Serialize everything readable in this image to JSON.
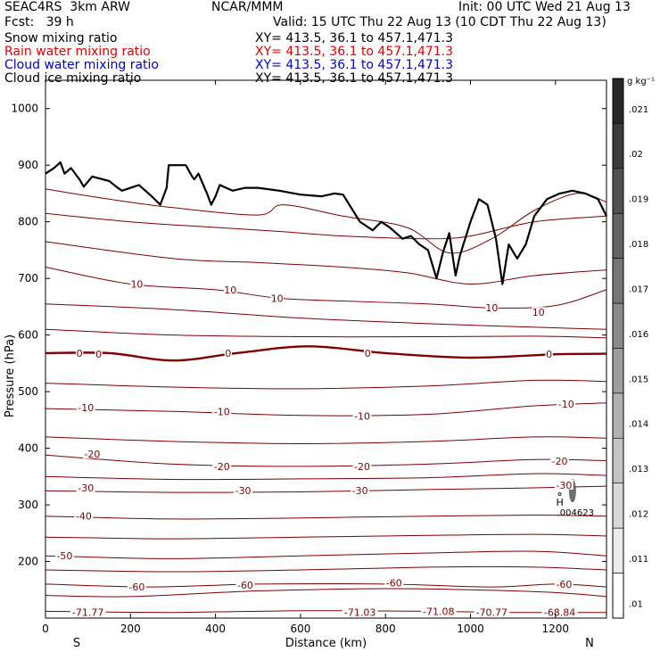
{
  "header": {
    "model": "SEAC4RS  3km ARW",
    "org": "NCAR/MMM",
    "init": "Init: 00 UTC Wed 21 Aug 13",
    "fcst": "Fcst:   39 h",
    "valid": "Valid: 15 UTC Thu 22 Aug 13 (10 CDT Thu 22 Aug 13)",
    "fields": [
      {
        "name": "Snow mixing ratio",
        "xy": "XY= 413.5, 36.1 to 457.1,471.3",
        "color": "#000000"
      },
      {
        "name": "Rain water mixing ratio",
        "xy": "XY= 413.5, 36.1 to 457.1,471.3",
        "color": "#e00000"
      },
      {
        "name": "Cloud water mixing ratio",
        "xy": "XY= 413.5, 36.1 to 457.1,471.3",
        "color": "#0000d0"
      },
      {
        "name": "Cloud ice mixing ratio",
        "xy": "XY= 413.5, 36.1 to 457.1,471.3",
        "color": "#000000"
      }
    ]
  },
  "colors": {
    "isotherm": "#800000",
    "terrain": "#000000",
    "grid_box": "#000000"
  },
  "chart_data": {
    "type": "contour_cross_section",
    "xlabel": "Distance (km)",
    "ylabel": "Pressure (hPa)",
    "xlim": [
      0,
      1320
    ],
    "ylim": [
      1050,
      100
    ],
    "x_ticks": [
      "0",
      "200",
      "400",
      "600",
      "800",
      "1000",
      "1200"
    ],
    "y_ticks": [
      "200",
      "300",
      "400",
      "500",
      "600",
      "700",
      "800",
      "900",
      "1000"
    ],
    "x_ends": {
      "left": "S",
      "right": "N"
    },
    "colorbar": {
      "unit": "g kg⁻¹",
      "labels": [
        ".021",
        ".02",
        ".019",
        ".018",
        ".017",
        ".016",
        ".015",
        ".014",
        ".013",
        ".012",
        ".011",
        ".01"
      ]
    },
    "max_label": {
      "symbol": "H",
      "value": ".004623"
    },
    "isotherm_labels": [
      {
        "text": "-71.77",
        "x": 100,
        "p": 110
      },
      {
        "text": "-71.03",
        "x": 740,
        "p": 110
      },
      {
        "text": "-71.08",
        "x": 925,
        "p": 112
      },
      {
        "text": "-70.77",
        "x": 1050,
        "p": 110
      },
      {
        "text": "-68.84",
        "x": 1210,
        "p": 110
      },
      {
        "text": "-60",
        "x": 215,
        "p": 155
      },
      {
        "text": "-60",
        "x": 470,
        "p": 158
      },
      {
        "text": "-60",
        "x": 820,
        "p": 162
      },
      {
        "text": "-60",
        "x": 1220,
        "p": 160
      },
      {
        "text": "-50",
        "x": 45,
        "p": 210
      },
      {
        "text": "-40",
        "x": 90,
        "p": 280
      },
      {
        "text": "-30",
        "x": 95,
        "p": 330
      },
      {
        "text": "-30",
        "x": 465,
        "p": 325
      },
      {
        "text": "-30",
        "x": 740,
        "p": 325
      },
      {
        "text": "-30",
        "x": 1220,
        "p": 335
      },
      {
        "text": "-20",
        "x": 110,
        "p": 390
      },
      {
        "text": "-20",
        "x": 415,
        "p": 368
      },
      {
        "text": "-20",
        "x": 745,
        "p": 368
      },
      {
        "text": "-20",
        "x": 1210,
        "p": 377
      },
      {
        "text": "-10",
        "x": 95,
        "p": 472
      },
      {
        "text": "-10",
        "x": 415,
        "p": 465
      },
      {
        "text": "-10",
        "x": 745,
        "p": 457
      },
      {
        "text": "-10",
        "x": 1225,
        "p": 478
      },
      {
        "text": "0",
        "x": 80,
        "p": 568
      },
      {
        "text": "0",
        "x": 125,
        "p": 566
      },
      {
        "text": "0",
        "x": 430,
        "p": 568
      },
      {
        "text": "0",
        "x": 758,
        "p": 568
      },
      {
        "text": "0",
        "x": 1185,
        "p": 566
      },
      {
        "text": "10",
        "x": 215,
        "p": 690
      },
      {
        "text": "10",
        "x": 435,
        "p": 680
      },
      {
        "text": "10",
        "x": 545,
        "p": 665
      },
      {
        "text": "10",
        "x": 1050,
        "p": 648
      },
      {
        "text": "10",
        "x": 1160,
        "p": 640
      }
    ],
    "isotherms": [
      {
        "t": -70,
        "thick": false,
        "pts": [
          [
            0,
            112
          ],
          [
            300,
            110
          ],
          [
            600,
            113
          ],
          [
            900,
            112
          ],
          [
            1100,
            110
          ],
          [
            1320,
            110
          ]
        ]
      },
      {
        "t": -60,
        "thick": false,
        "pts": [
          [
            0,
            140
          ],
          [
            200,
            138
          ],
          [
            500,
            148
          ],
          [
            800,
            152
          ],
          [
            1000,
            150
          ],
          [
            1200,
            145
          ],
          [
            1320,
            138
          ]
        ]
      },
      {
        "t": -60,
        "thick": false,
        "pts": [
          [
            0,
            160
          ],
          [
            250,
            155
          ],
          [
            500,
            160
          ],
          [
            800,
            160
          ],
          [
            1050,
            155
          ],
          [
            1200,
            160
          ],
          [
            1320,
            155
          ]
        ]
      },
      {
        "t": -55,
        "thick": false,
        "pts": [
          [
            0,
            185
          ],
          [
            300,
            182
          ],
          [
            600,
            185
          ],
          [
            900,
            190
          ],
          [
            1150,
            190
          ],
          [
            1320,
            185
          ]
        ]
      },
      {
        "t": -50,
        "thick": false,
        "pts": [
          [
            0,
            210
          ],
          [
            300,
            205
          ],
          [
            600,
            210
          ],
          [
            900,
            215
          ],
          [
            1150,
            218
          ],
          [
            1320,
            210
          ]
        ]
      },
      {
        "t": -45,
        "thick": false,
        "pts": [
          [
            0,
            243
          ],
          [
            300,
            240
          ],
          [
            600,
            243
          ],
          [
            900,
            246
          ],
          [
            1150,
            248
          ],
          [
            1320,
            245
          ]
        ]
      },
      {
        "t": -40,
        "thick": false,
        "pts": [
          [
            0,
            280
          ],
          [
            300,
            275
          ],
          [
            600,
            277
          ],
          [
            900,
            280
          ],
          [
            1150,
            282
          ],
          [
            1320,
            280
          ]
        ]
      },
      {
        "t": -30,
        "thick": false,
        "pts": [
          [
            0,
            325
          ],
          [
            300,
            322
          ],
          [
            600,
            323
          ],
          [
            900,
            327
          ],
          [
            1150,
            330
          ],
          [
            1320,
            333
          ]
        ]
      },
      {
        "t": -25,
        "thick": false,
        "pts": [
          [
            0,
            350
          ],
          [
            300,
            345
          ],
          [
            600,
            346
          ],
          [
            900,
            348
          ],
          [
            1150,
            355
          ],
          [
            1320,
            352
          ]
        ]
      },
      {
        "t": -20,
        "thick": false,
        "pts": [
          [
            0,
            388
          ],
          [
            300,
            372
          ],
          [
            600,
            368
          ],
          [
            900,
            372
          ],
          [
            1150,
            380
          ],
          [
            1320,
            378
          ]
        ]
      },
      {
        "t": -15,
        "thick": false,
        "pts": [
          [
            0,
            420
          ],
          [
            300,
            412
          ],
          [
            600,
            408
          ],
          [
            900,
            412
          ],
          [
            1150,
            420
          ],
          [
            1320,
            418
          ]
        ]
      },
      {
        "t": -10,
        "thick": false,
        "pts": [
          [
            0,
            470
          ],
          [
            300,
            465
          ],
          [
            600,
            458
          ],
          [
            900,
            460
          ],
          [
            1150,
            475
          ],
          [
            1320,
            480
          ]
        ]
      },
      {
        "t": -5,
        "thick": false,
        "pts": [
          [
            0,
            515
          ],
          [
            300,
            508
          ],
          [
            600,
            505
          ],
          [
            900,
            510
          ],
          [
            1150,
            520
          ],
          [
            1320,
            518
          ]
        ]
      },
      {
        "t": 0,
        "thick": true,
        "pts": [
          [
            0,
            568
          ],
          [
            150,
            568
          ],
          [
            300,
            555
          ],
          [
            450,
            568
          ],
          [
            620,
            580
          ],
          [
            800,
            568
          ],
          [
            1000,
            560
          ],
          [
            1200,
            566
          ],
          [
            1320,
            567
          ]
        ]
      },
      {
        "t": 5,
        "thick": false,
        "pts": [
          [
            0,
            610
          ],
          [
            300,
            600
          ],
          [
            600,
            597
          ],
          [
            900,
            597
          ],
          [
            1150,
            598
          ],
          [
            1320,
            595
          ]
        ]
      },
      {
        "t": 10,
        "thick": false,
        "pts": [
          [
            0,
            655
          ],
          [
            300,
            645
          ],
          [
            600,
            630
          ],
          [
            900,
            620
          ],
          [
            1100,
            615
          ],
          [
            1320,
            610
          ]
        ]
      },
      {
        "t": 10,
        "thick": false,
        "pts": [
          [
            0,
            720
          ],
          [
            200,
            690
          ],
          [
            400,
            680
          ],
          [
            550,
            665
          ],
          [
            700,
            660
          ],
          [
            900,
            655
          ],
          [
            1050,
            648
          ],
          [
            1200,
            652
          ],
          [
            1320,
            680
          ]
        ]
      },
      {
        "t": 15,
        "thick": false,
        "pts": [
          [
            0,
            765
          ],
          [
            300,
            735
          ],
          [
            500,
            728
          ],
          [
            700,
            720
          ],
          [
            850,
            710
          ],
          [
            1000,
            690
          ],
          [
            1150,
            705
          ],
          [
            1320,
            715
          ]
        ]
      },
      {
        "t": 20,
        "thick": false,
        "pts": [
          [
            0,
            815
          ],
          [
            200,
            800
          ],
          [
            400,
            790
          ],
          [
            550,
            783
          ],
          [
            700,
            775
          ],
          [
            900,
            770
          ],
          [
            1000,
            775
          ],
          [
            1150,
            800
          ],
          [
            1320,
            810
          ]
        ]
      },
      {
        "t": 25,
        "thick": false,
        "pts": [
          [
            0,
            858
          ],
          [
            150,
            840
          ],
          [
            300,
            825
          ],
          [
            500,
            812
          ],
          [
            560,
            830
          ],
          [
            700,
            810
          ],
          [
            850,
            790
          ],
          [
            950,
            745
          ],
          [
            1050,
            770
          ],
          [
            1150,
            820
          ],
          [
            1250,
            850
          ],
          [
            1320,
            835
          ]
        ]
      }
    ],
    "terrain": [
      [
        0,
        885
      ],
      [
        20,
        895
      ],
      [
        35,
        905
      ],
      [
        45,
        885
      ],
      [
        60,
        895
      ],
      [
        80,
        875
      ],
      [
        90,
        862
      ],
      [
        110,
        880
      ],
      [
        150,
        872
      ],
      [
        170,
        860
      ],
      [
        180,
        855
      ],
      [
        220,
        865
      ],
      [
        250,
        845
      ],
      [
        270,
        830
      ],
      [
        285,
        860
      ],
      [
        290,
        900
      ],
      [
        330,
        900
      ],
      [
        345,
        880
      ],
      [
        350,
        875
      ],
      [
        360,
        885
      ],
      [
        380,
        850
      ],
      [
        390,
        830
      ],
      [
        400,
        845
      ],
      [
        410,
        865
      ],
      [
        440,
        855
      ],
      [
        470,
        860
      ],
      [
        500,
        860
      ],
      [
        550,
        855
      ],
      [
        600,
        848
      ],
      [
        650,
        845
      ],
      [
        680,
        850
      ],
      [
        700,
        848
      ],
      [
        740,
        800
      ],
      [
        770,
        785
      ],
      [
        790,
        800
      ],
      [
        810,
        790
      ],
      [
        840,
        770
      ],
      [
        860,
        775
      ],
      [
        880,
        760
      ],
      [
        900,
        750
      ],
      [
        920,
        700
      ],
      [
        935,
        745
      ],
      [
        950,
        780
      ],
      [
        965,
        705
      ],
      [
        975,
        740
      ],
      [
        1000,
        800
      ],
      [
        1020,
        840
      ],
      [
        1040,
        830
      ],
      [
        1060,
        770
      ],
      [
        1075,
        690
      ],
      [
        1090,
        760
      ],
      [
        1110,
        735
      ],
      [
        1130,
        760
      ],
      [
        1150,
        810
      ],
      [
        1180,
        840
      ],
      [
        1210,
        850
      ],
      [
        1240,
        855
      ],
      [
        1270,
        850
      ],
      [
        1300,
        840
      ],
      [
        1320,
        810
      ]
    ],
    "ice_blob": {
      "x": 1240,
      "p": 325
    },
    "max_marker": {
      "x": 1210,
      "p": 300
    }
  }
}
